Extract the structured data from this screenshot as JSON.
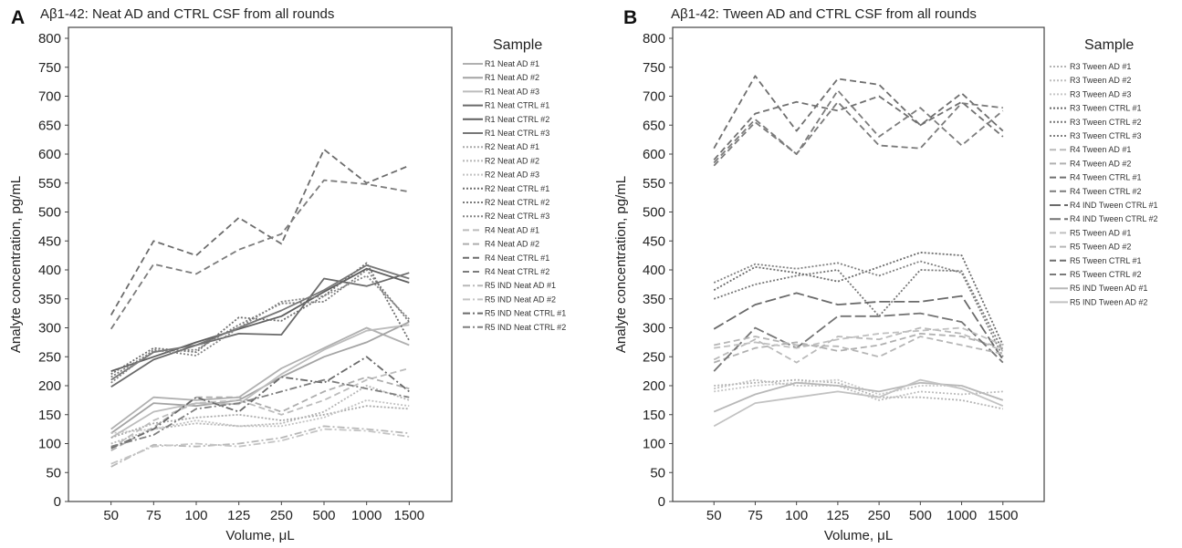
{
  "chart_data": [
    {
      "panel": "A",
      "title": "Aβ1-42: Neat AD and CTRL CSF from all rounds",
      "type": "line",
      "xlabel": "Volume, μL",
      "ylabel": "Analyte concentration, pg/mL",
      "ylim": [
        0,
        800
      ],
      "yticks": [
        "0",
        "50",
        "100",
        "150",
        "200",
        "250",
        "300",
        "350",
        "400",
        "450",
        "500",
        "550",
        "600",
        "650",
        "700",
        "750",
        "800"
      ],
      "categories": [
        "50",
        "75",
        "100",
        "125",
        "250",
        "500",
        "1000",
        "1500"
      ],
      "grid": false,
      "legend": {
        "title": "Sample",
        "placement": "right"
      },
      "series": [
        {
          "name": "R1 Neat AD #1",
          "color": "#b0b0b0",
          "dash": "solid",
          "values": [
            125,
            180,
            175,
            180,
            230,
            265,
            300,
            270
          ]
        },
        {
          "name": "R1 Neat AD #2",
          "color": "#a4a4a4",
          "dash": "solid",
          "values": [
            118,
            170,
            165,
            175,
            215,
            250,
            275,
            310
          ]
        },
        {
          "name": "R1 Neat AD #3",
          "color": "#bcbcbc",
          "dash": "solid",
          "values": [
            110,
            155,
            170,
            168,
            220,
            262,
            295,
            305
          ]
        },
        {
          "name": "R1 Neat CTRL #1",
          "color": "#6a6a6a",
          "dash": "solid",
          "values": [
            198,
            245,
            270,
            290,
            288,
            385,
            372,
            395
          ]
        },
        {
          "name": "R1 Neat CTRL #2",
          "color": "#5e5e5e",
          "dash": "solid",
          "values": [
            225,
            250,
            275,
            298,
            320,
            362,
            402,
            378
          ]
        },
        {
          "name": "R1 Neat CTRL #3",
          "color": "#777777",
          "dash": "solid",
          "values": [
            210,
            258,
            270,
            300,
            330,
            365,
            408,
            385
          ]
        },
        {
          "name": "R2 Neat AD #1",
          "color": "#aaaaaa",
          "dash": "dot",
          "values": [
            110,
            135,
            145,
            150,
            140,
            150,
            165,
            160
          ]
        },
        {
          "name": "R2 Neat AD #2",
          "color": "#b6b6b6",
          "dash": "dot",
          "values": [
            100,
            125,
            135,
            130,
            135,
            155,
            200,
            175
          ]
        },
        {
          "name": "R2 Neat AD #3",
          "color": "#c2c2c2",
          "dash": "dot",
          "values": [
            118,
            125,
            140,
            130,
            130,
            145,
            175,
            165
          ]
        },
        {
          "name": "R2 Neat CTRL #1",
          "color": "#6e6e6e",
          "dash": "dot",
          "values": [
            220,
            265,
            258,
            318,
            312,
            355,
            412,
            278
          ]
        },
        {
          "name": "R2 Neat CTRL #2",
          "color": "#7a7a7a",
          "dash": "dot",
          "values": [
            215,
            260,
            262,
            305,
            342,
            345,
            400,
            310
          ]
        },
        {
          "name": "R2 Neat CTRL #3",
          "color": "#848484",
          "dash": "dot",
          "values": [
            205,
            262,
            252,
            300,
            345,
            355,
            390,
            315
          ]
        },
        {
          "name": "R4 Neat AD #1",
          "color": "#bcbcbc",
          "dash": "dash",
          "values": [
            92,
            140,
            170,
            175,
            150,
            175,
            210,
            230
          ]
        },
        {
          "name": "R4 Neat AD #2",
          "color": "#aeaeae",
          "dash": "dash",
          "values": [
            88,
            128,
            180,
            180,
            155,
            190,
            215,
            195
          ]
        },
        {
          "name": "R4 Neat CTRL #1",
          "color": "#6c6c6c",
          "dash": "dash",
          "values": [
            322,
            450,
            425,
            490,
            445,
            608,
            550,
            580
          ]
        },
        {
          "name": "R4 Neat CTRL #2",
          "color": "#7c7c7c",
          "dash": "dash",
          "values": [
            298,
            410,
            393,
            435,
            462,
            555,
            548,
            535
          ]
        },
        {
          "name": "R5 IND Neat AD #1",
          "color": "#b8b8b8",
          "dash": "dashdot",
          "values": [
            60,
            98,
            95,
            100,
            110,
            130,
            125,
            118
          ]
        },
        {
          "name": "R5 IND Neat AD #2",
          "color": "#c4c4c4",
          "dash": "dashdot",
          "values": [
            65,
            95,
            100,
            95,
            105,
            125,
            122,
            112
          ]
        },
        {
          "name": "R5 IND Neat CTRL #1",
          "color": "#6a6a6a",
          "dash": "dashdot",
          "values": [
            92,
            125,
            180,
            155,
            215,
            205,
            250,
            190
          ]
        },
        {
          "name": "R5 IND Neat CTRL #2",
          "color": "#7e7e7e",
          "dash": "dashdot",
          "values": [
            95,
            115,
            160,
            170,
            190,
            210,
            195,
            180
          ]
        }
      ]
    },
    {
      "panel": "B",
      "title": "Aβ1-42: Tween AD and CTRL CSF from all rounds",
      "type": "line",
      "xlabel": "Volume, μL",
      "ylabel": "Analyte concentration, pg/mL",
      "ylim": [
        0,
        800
      ],
      "yticks": [
        "0",
        "50",
        "100",
        "150",
        "200",
        "250",
        "300",
        "350",
        "400",
        "450",
        "500",
        "550",
        "600",
        "650",
        "700",
        "750",
        "800"
      ],
      "categories": [
        "50",
        "75",
        "100",
        "125",
        "250",
        "500",
        "1000",
        "1500"
      ],
      "grid": false,
      "legend": {
        "title": "Sample",
        "placement": "right"
      },
      "series": [
        {
          "name": "R3 Tween AD #1",
          "color": "#b4b4b4",
          "dash": "dot",
          "values": [
            200,
            205,
            210,
            205,
            180,
            180,
            175,
            160
          ]
        },
        {
          "name": "R3 Tween AD #2",
          "color": "#bebebe",
          "dash": "dot",
          "values": [
            195,
            210,
            200,
            200,
            175,
            190,
            185,
            190
          ]
        },
        {
          "name": "R3 Tween AD #3",
          "color": "#c6c6c6",
          "dash": "dot",
          "values": [
            190,
            200,
            205,
            210,
            185,
            200,
            200,
            175
          ]
        },
        {
          "name": "R3 Tween CTRL #1",
          "color": "#6a6a6a",
          "dash": "dot",
          "values": [
            365,
            405,
            395,
            380,
            405,
            430,
            425,
            270
          ]
        },
        {
          "name": "R3 Tween CTRL #2",
          "color": "#767676",
          "dash": "dot",
          "values": [
            350,
            375,
            390,
            400,
            320,
            400,
            398,
            260
          ]
        },
        {
          "name": "R3 Tween CTRL #3",
          "color": "#808080",
          "dash": "dot",
          "values": [
            378,
            410,
            402,
            412,
            390,
            415,
            395,
            250
          ]
        },
        {
          "name": "R4 Tween AD #1",
          "color": "#bababa",
          "dash": "dash",
          "values": [
            245,
            280,
            240,
            285,
            280,
            300,
            290,
            260
          ]
        },
        {
          "name": "R4 Tween AD #2",
          "color": "#b0b0b0",
          "dash": "dash",
          "values": [
            240,
            265,
            275,
            260,
            270,
            290,
            285,
            265
          ]
        },
        {
          "name": "R4 Tween CTRL #1",
          "color": "#707070",
          "dash": "dash",
          "values": [
            590,
            670,
            690,
            675,
            700,
            650,
            690,
            630
          ]
        },
        {
          "name": "R4 Tween CTRL #2",
          "color": "#7c7c7c",
          "dash": "dash",
          "values": [
            585,
            660,
            600,
            710,
            630,
            680,
            615,
            675
          ]
        },
        {
          "name": "R4 IND Tween CTRL #1",
          "color": "#6a6a6a",
          "dash": "longdash",
          "values": [
            298,
            340,
            360,
            340,
            345,
            345,
            355,
            245
          ]
        },
        {
          "name": "R4 IND Tween CTRL #2",
          "color": "#747474",
          "dash": "longdash",
          "values": [
            225,
            300,
            265,
            320,
            320,
            325,
            310,
            240
          ]
        },
        {
          "name": "R5 Tween AD #1",
          "color": "#c0c0c0",
          "dash": "dash",
          "values": [
            265,
            275,
            265,
            280,
            290,
            295,
            300,
            270
          ]
        },
        {
          "name": "R5 Tween AD #2",
          "color": "#b6b6b6",
          "dash": "dash",
          "values": [
            270,
            285,
            270,
            268,
            250,
            285,
            270,
            255
          ]
        },
        {
          "name": "R5 Tween CTRL #1",
          "color": "#6e6e6e",
          "dash": "dash",
          "values": [
            610,
            735,
            640,
            730,
            720,
            650,
            705,
            640
          ]
        },
        {
          "name": "R5 Tween CTRL #2",
          "color": "#7a7a7a",
          "dash": "dash",
          "values": [
            580,
            655,
            600,
            690,
            615,
            610,
            688,
            680
          ]
        },
        {
          "name": "R5 IND Tween AD #1",
          "color": "#b8b8b8",
          "dash": "solid",
          "values": [
            155,
            185,
            205,
            200,
            190,
            205,
            200,
            175
          ]
        },
        {
          "name": "R5 IND Tween AD #2",
          "color": "#c2c2c2",
          "dash": "solid",
          "values": [
            130,
            170,
            180,
            190,
            180,
            210,
            195,
            165
          ]
        }
      ]
    }
  ]
}
